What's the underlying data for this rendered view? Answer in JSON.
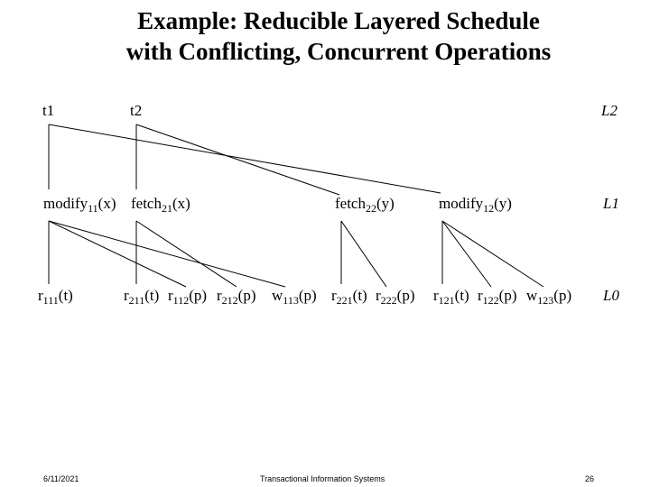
{
  "title": {
    "line1": "Example: Reducible Layered Schedule",
    "line2": "with Conflicting, Concurrent Operations"
  },
  "transactions": [
    "t1",
    "t2"
  ],
  "levels": [
    "L2",
    "L1",
    "L0"
  ],
  "l1_ops": [
    {
      "name": "modify",
      "sub": "11",
      "arg": "(x)"
    },
    {
      "name": "fetch",
      "sub": "21",
      "arg": "(x)"
    },
    {
      "name": "fetch",
      "sub": "22",
      "arg": "(y)"
    },
    {
      "name": "modify",
      "sub": "12",
      "arg": "(y)"
    }
  ],
  "l0_ops": [
    {
      "name": "r",
      "sub": "111",
      "arg": "(t)"
    },
    {
      "name": "r",
      "sub": "211",
      "arg": "(t)"
    },
    {
      "name": "r",
      "sub": "112",
      "arg": "(p)"
    },
    {
      "name": "r",
      "sub": "212",
      "arg": "(p)"
    },
    {
      "name": "w",
      "sub": "113",
      "arg": "(p)"
    },
    {
      "name": "r",
      "sub": "221",
      "arg": "(t)"
    },
    {
      "name": "r",
      "sub": "222",
      "arg": "(p)"
    },
    {
      "name": "r",
      "sub": "121",
      "arg": "(t)"
    },
    {
      "name": "r",
      "sub": "122",
      "arg": "(p)"
    },
    {
      "name": "w",
      "sub": "123",
      "arg": "(p)"
    }
  ],
  "footer": {
    "date": "6/11/2021",
    "course": "Transactional Information Systems",
    "page": "26"
  }
}
